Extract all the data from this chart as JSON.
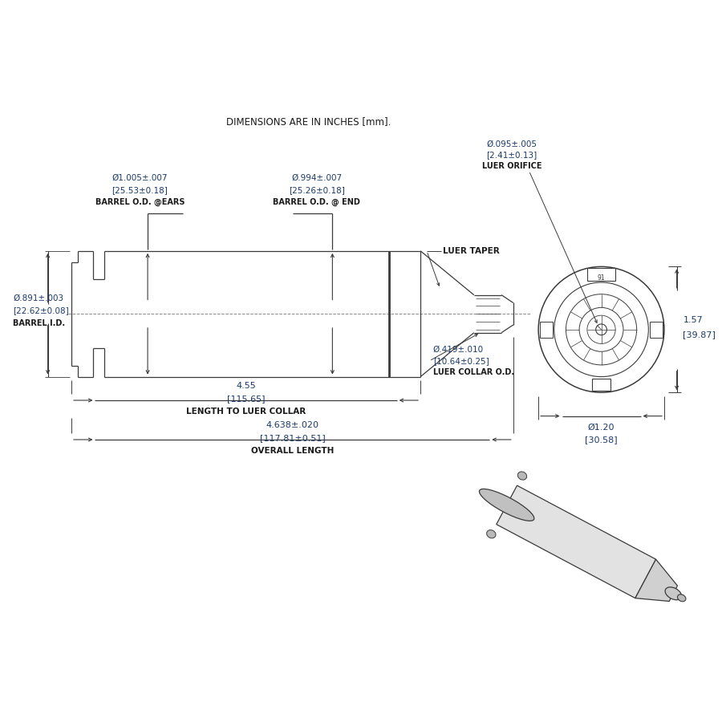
{
  "title_note": "DIMENSIONS ARE IN INCHES [mm].",
  "bg_color": "#ffffff",
  "line_color": "#3a3a3a",
  "dim_color": "#1a3a6b",
  "text_color": "#1a1a1a",
  "annotations": {
    "barrel_od_ears_l1": "Ø1.005±.007",
    "barrel_od_ears_l2": "[25.53±0.18]",
    "barrel_od_ears_l3": "BARREL O.D. @EARS",
    "barrel_od_end_l1": "Ø.994±.007",
    "barrel_od_end_l2": "[25.26±0.18]",
    "barrel_od_end_l3": "BARREL O.D. @ END",
    "barrel_id_l1": "Ø.891±.003",
    "barrel_id_l2": "[22.62±0.08]",
    "barrel_id_l3": "BARREL I.D.",
    "luer_orifice_l1": "Ø.095±.005",
    "luer_orifice_l2": "[2.41±0.13]",
    "luer_orifice_l3": "LUER ORIFICE",
    "luer_taper": "LUER TAPER",
    "luer_collar_l1": "Ø.419±.010",
    "luer_collar_l2": "[10.64±0.25]",
    "luer_collar_l3": "LUER COLLAR O.D.",
    "length_collar_l1": "4.55",
    "length_collar_l2": "[115.65]",
    "length_collar_l3": "LENGTH TO LUER COLLAR",
    "overall_l1": "4.638±.020",
    "overall_l2": "[117.81±0.51]",
    "overall_l3": "OVERALL LENGTH",
    "height_l1": "1.57",
    "height_l2": "[39.87]",
    "width_l1": "Ø1.20",
    "width_l2": "[30.58]"
  }
}
